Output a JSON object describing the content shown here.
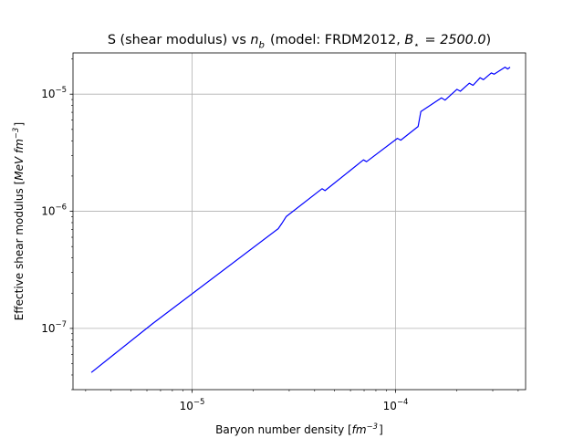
{
  "chart_data": {
    "type": "line",
    "title": "S (shear modulus) vs $n_b$ (model: FRDM2012, $B_\\star = 2500.0$)",
    "xlabel": "Baryon number density [$fm^{-3}$]",
    "ylabel": "Effective shear modulus [$MeV fm^{-3}$]",
    "xscale": "log",
    "yscale": "log",
    "xlim": [
      2.6e-06,
      0.000435
    ],
    "ylim": [
      3e-08,
      2.25e-05
    ],
    "grid": true,
    "line_color": "#0000ff",
    "x_major_ticks": [
      {
        "value": 1e-05,
        "label": "10",
        "exp": "−5"
      },
      {
        "value": 0.0001,
        "label": "10",
        "exp": "−4"
      }
    ],
    "y_major_ticks": [
      {
        "value": 1e-07,
        "label": "10",
        "exp": "−7"
      },
      {
        "value": 1e-06,
        "label": "10",
        "exp": "−6"
      },
      {
        "value": 1e-05,
        "label": "10",
        "exp": "−5"
      }
    ],
    "series": [
      {
        "x": [
          3.2e-06,
          6.4e-06,
          2.65e-05,
          2.75e-05,
          2.9e-05,
          4.35e-05,
          4.5e-05,
          6.95e-05,
          7.2e-05,
          0.000102,
          0.000106,
          0.000129,
          0.000133,
          0.000168,
          0.000175,
          0.0002,
          0.000208,
          0.00023,
          0.00024,
          0.00026,
          0.00027,
          0.000295,
          0.000305,
          0.000345,
          0.000355,
          0.000365
        ],
        "y": [
          4.2e-08,
          1.1e-07,
          7.1e-07,
          7.8e-07,
          9e-07,
          1.56e-06,
          1.5e-06,
          2.75e-06,
          2.65e-06,
          4.2e-06,
          4.05e-06,
          5.3e-06,
          7.1e-06,
          9.3e-06,
          8.9e-06,
          1.1e-05,
          1.06e-05,
          1.24e-05,
          1.19e-05,
          1.38e-05,
          1.33e-05,
          1.52e-05,
          1.48e-05,
          1.7e-05,
          1.64e-05,
          1.7e-05
        ]
      }
    ]
  }
}
